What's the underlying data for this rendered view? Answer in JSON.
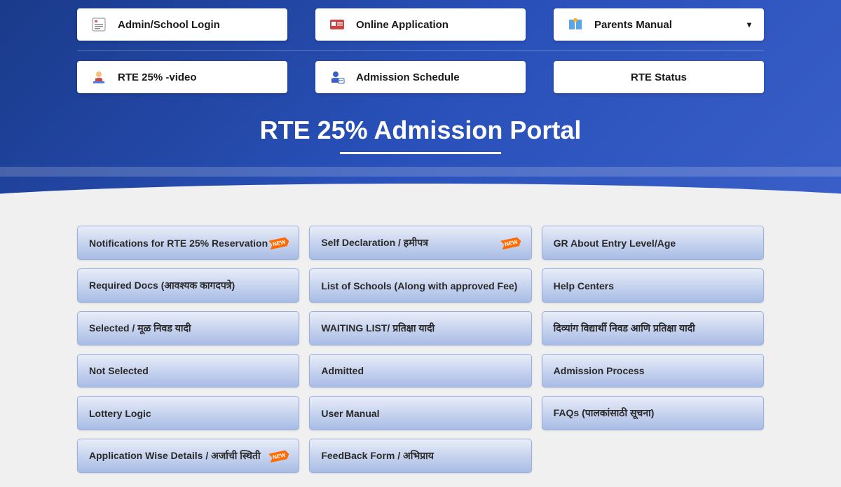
{
  "nav_row_1": [
    {
      "label": "Admin/School Login",
      "icon": "admin",
      "has_dropdown": false,
      "name": "admin-login-button"
    },
    {
      "label": "Online Application",
      "icon": "apply",
      "has_dropdown": false,
      "name": "online-application-button"
    },
    {
      "label": "Parents Manual",
      "icon": "manual",
      "has_dropdown": true,
      "name": "parents-manual-button"
    }
  ],
  "nav_row_2": [
    {
      "label": "RTE 25% -video",
      "icon": "video",
      "has_dropdown": false,
      "name": "rte-video-button"
    },
    {
      "label": "Admission Schedule",
      "icon": "schedule",
      "has_dropdown": false,
      "name": "admission-schedule-button"
    },
    {
      "label": "RTE  Status",
      "icon": "",
      "has_dropdown": false,
      "name": "rte-status-button",
      "center": true
    }
  ],
  "portal_title": "RTE 25% Admission Portal",
  "grid_cards": [
    {
      "label": "Notifications for RTE 25% Reservation",
      "new": true,
      "name": "notifications-card"
    },
    {
      "label": "Self Declaration / हमीपत्र",
      "new": true,
      "name": "self-declaration-card"
    },
    {
      "label": "GR About Entry Level/Age",
      "new": false,
      "name": "gr-entry-level-card"
    },
    {
      "label": "Required Docs (आवश्यक कागदपत्रे)",
      "new": false,
      "name": "required-docs-card"
    },
    {
      "label": "List of Schools (Along with approved Fee)",
      "new": false,
      "name": "list-schools-card"
    },
    {
      "label": "Help Centers",
      "new": false,
      "name": "help-centers-card"
    },
    {
      "label": "Selected / मूळ निवड यादी",
      "new": false,
      "name": "selected-list-card"
    },
    {
      "label": "WAITING LIST/ प्रतिक्षा यादी",
      "new": false,
      "name": "waiting-list-card"
    },
    {
      "label": "दिव्यांग विद्यार्थी निवड आणि प्रतिक्षा यादी",
      "new": false,
      "name": "divyang-list-card"
    },
    {
      "label": "Not Selected",
      "new": false,
      "name": "not-selected-card"
    },
    {
      "label": "Admitted",
      "new": false,
      "name": "admitted-card"
    },
    {
      "label": "Admission Process",
      "new": false,
      "name": "admission-process-card"
    },
    {
      "label": "Lottery Logic",
      "new": false,
      "name": "lottery-logic-card"
    },
    {
      "label": "User Manual",
      "new": false,
      "name": "user-manual-card"
    },
    {
      "label": "FAQs (पालकांसाठी सूचना)",
      "new": false,
      "name": "faqs-card"
    },
    {
      "label": "Application Wise Details / अर्जाची स्थिती",
      "new": true,
      "name": "application-details-card"
    },
    {
      "label": "FeedBack Form / अभिप्राय",
      "new": false,
      "name": "feedback-form-card"
    }
  ],
  "new_badge_text": "NEW",
  "colors": {
    "header_bg_start": "#1a3a8a",
    "header_bg_end": "#3a5fc8",
    "card_bg_start": "#e8edf8",
    "card_bg_end": "#a8bce5",
    "card_border": "#9ab0dd",
    "page_bg": "#f0f0f0",
    "new_badge": "#ff6b00"
  }
}
